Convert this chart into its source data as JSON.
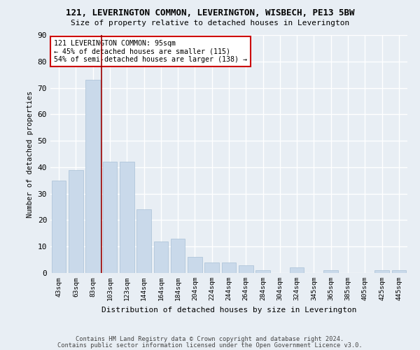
{
  "title": "121, LEVERINGTON COMMON, LEVERINGTON, WISBECH, PE13 5BW",
  "subtitle": "Size of property relative to detached houses in Leverington",
  "xlabel": "Distribution of detached houses by size in Leverington",
  "ylabel": "Number of detached properties",
  "categories": [
    "43sqm",
    "63sqm",
    "83sqm",
    "103sqm",
    "123sqm",
    "144sqm",
    "164sqm",
    "184sqm",
    "204sqm",
    "224sqm",
    "244sqm",
    "264sqm",
    "284sqm",
    "304sqm",
    "324sqm",
    "345sqm",
    "365sqm",
    "385sqm",
    "405sqm",
    "425sqm",
    "445sqm"
  ],
  "values": [
    35,
    39,
    73,
    42,
    42,
    24,
    12,
    13,
    6,
    4,
    4,
    3,
    1,
    0,
    2,
    0,
    1,
    0,
    0,
    1,
    1
  ],
  "bar_color": "#c9d9ea",
  "bar_edgecolor": "#a8c0d6",
  "vline_x": 2.5,
  "vline_color": "#990000",
  "annotation_text": "121 LEVERINGTON COMMON: 95sqm\n← 45% of detached houses are smaller (115)\n54% of semi-detached houses are larger (138) →",
  "annotation_box_color": "#ffffff",
  "annotation_box_edgecolor": "#cc0000",
  "bg_color": "#e8eef4",
  "plot_bg_color": "#e8eef4",
  "grid_color": "#ffffff",
  "ylim": [
    0,
    90
  ],
  "yticks": [
    0,
    10,
    20,
    30,
    40,
    50,
    60,
    70,
    80,
    90
  ],
  "footer1": "Contains HM Land Registry data © Crown copyright and database right 2024.",
  "footer2": "Contains public sector information licensed under the Open Government Licence v3.0."
}
